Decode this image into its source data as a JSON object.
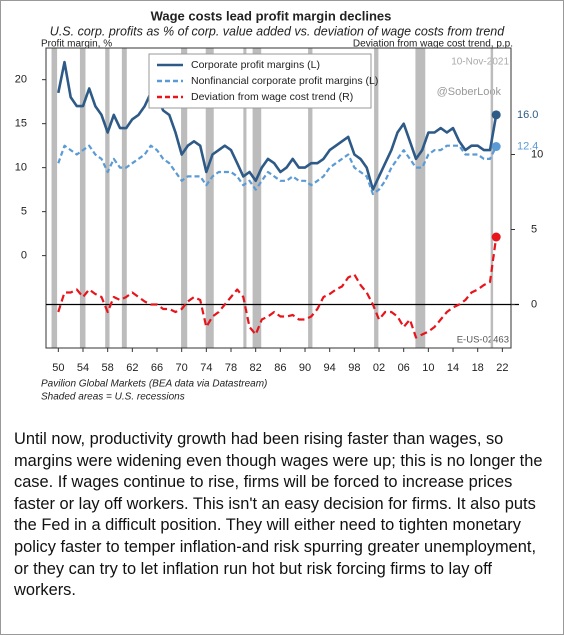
{
  "chart_data": {
    "type": "line",
    "title": "Wage costs lead profit margin declines",
    "subtitle": "U.S. corp. profits as % of corp. value added vs. deviation of wage costs from trend",
    "ylabel": "Profit margin, %",
    "y2label": "Deviation from wage cost trend, p.p.",
    "source": "Pavilion Global Markets (BEA data via Datastream)",
    "note": "Shaded areas = U.S. recessions",
    "code": "E-US-02463",
    "watermarks": [
      "10-Nov-2021",
      "@SoberLook"
    ],
    "x": [
      1950,
      1951,
      1952,
      1953,
      1954,
      1955,
      1956,
      1957,
      1958,
      1959,
      1960,
      1961,
      1962,
      1963,
      1964,
      1965,
      1966,
      1967,
      1968,
      1969,
      1970,
      1971,
      1972,
      1973,
      1974,
      1975,
      1976,
      1977,
      1978,
      1979,
      1980,
      1981,
      1982,
      1983,
      1984,
      1985,
      1986,
      1987,
      1988,
      1989,
      1990,
      1991,
      1992,
      1993,
      1994,
      1995,
      1996,
      1997,
      1998,
      1999,
      2000,
      2001,
      2002,
      2003,
      2004,
      2005,
      2006,
      2007,
      2008,
      2009,
      2010,
      2011,
      2012,
      2013,
      2014,
      2015,
      2016,
      2017,
      2018,
      2019,
      2020,
      2021
    ],
    "series": [
      {
        "name": "Corporate profit margins (L)",
        "color": "#2e5a87",
        "dash": false,
        "end_label": "16.0",
        "values": [
          18.5,
          22,
          18,
          17,
          17,
          19,
          17,
          16,
          14,
          16,
          14.5,
          14.5,
          15.5,
          16,
          17,
          18.5,
          18,
          16.5,
          16,
          14,
          11.5,
          12.5,
          13,
          12.5,
          9.5,
          11.5,
          12,
          12.5,
          12,
          10.5,
          9,
          9.5,
          8.5,
          10,
          11,
          10.5,
          9.5,
          10,
          11,
          10,
          10,
          10.5,
          10.5,
          11,
          12,
          12.5,
          13,
          13.5,
          11.5,
          11,
          10,
          7.5,
          9,
          10.5,
          12,
          14,
          15,
          13,
          11,
          12,
          14,
          14,
          14.5,
          14,
          14.5,
          13,
          12,
          12.5,
          12.5,
          12,
          12,
          16
        ]
      },
      {
        "name": "Nonfinancial corporate profit margins (L)",
        "color": "#5b9bd5",
        "dash": true,
        "end_label": "12.4",
        "values": [
          10.5,
          12.5,
          12,
          11.5,
          12,
          12.5,
          11.5,
          11,
          9.5,
          11,
          10,
          10,
          10.5,
          11,
          11.5,
          12.5,
          12,
          11,
          10.5,
          9.5,
          8.5,
          9,
          9,
          9,
          8,
          9,
          9.5,
          9.5,
          9.5,
          9,
          8,
          8.5,
          7.5,
          8.5,
          9.5,
          9,
          8.5,
          8.5,
          9,
          8.5,
          8.5,
          8,
          8.5,
          9,
          10,
          10.5,
          11,
          11.5,
          10,
          9.5,
          9,
          7,
          7.5,
          8.5,
          10,
          11,
          12,
          11,
          10,
          10,
          11.5,
          12,
          12,
          12.5,
          12.5,
          12.5,
          11.5,
          11.5,
          11.5,
          11,
          11,
          12.4
        ]
      },
      {
        "name": "Deviation from wage cost trend (R)",
        "color": "#e8141b",
        "dash": true,
        "axis": "y2",
        "values": [
          -0.5,
          0.8,
          0.8,
          1,
          0.5,
          1,
          0.7,
          0.5,
          -0.5,
          0.5,
          0.3,
          0.5,
          0.8,
          0.5,
          0.2,
          0,
          0,
          -0.3,
          -0.3,
          -0.5,
          -0.3,
          0.2,
          0.5,
          0.3,
          -1.5,
          -0.8,
          -0.5,
          0,
          0.5,
          1,
          0.5,
          -1.5,
          -2,
          -1,
          -0.8,
          -0.5,
          -0.8,
          -0.8,
          -0.7,
          -1,
          -1,
          -0.8,
          -0.3,
          0.5,
          0.7,
          1,
          1.2,
          1.8,
          2,
          1.3,
          0.8,
          0,
          -1,
          -0.5,
          -0.5,
          -0.8,
          -1.5,
          -1,
          -2.2,
          -2,
          -1.8,
          -1.5,
          -1,
          -0.5,
          -0.2,
          0,
          0.3,
          0.8,
          1,
          1.3,
          1.5,
          4.5
        ]
      }
    ],
    "recessions": [
      [
        1948.9,
        1949.8
      ],
      [
        1953.5,
        1954.4
      ],
      [
        1957.6,
        1958.3
      ],
      [
        1960.3,
        1961.1
      ],
      [
        1969.9,
        1970.9
      ],
      [
        1973.9,
        1975.2
      ],
      [
        1980.0,
        1980.5
      ],
      [
        1981.5,
        1982.9
      ],
      [
        1990.5,
        1991.2
      ],
      [
        2001.2,
        2001.9
      ],
      [
        2007.9,
        2009.5
      ],
      [
        2020.1,
        2020.5
      ]
    ],
    "xlim": [
      1948,
      2023.4
    ],
    "xticks": [
      {
        "value": 1950,
        "label": "50"
      },
      {
        "value": 1954,
        "label": "54"
      },
      {
        "value": 1958,
        "label": "58"
      },
      {
        "value": 1962,
        "label": "62"
      },
      {
        "value": 1966,
        "label": "66"
      },
      {
        "value": 1970,
        "label": "70"
      },
      {
        "value": 1974,
        "label": "74"
      },
      {
        "value": 1978,
        "label": "78"
      },
      {
        "value": 1982,
        "label": "82"
      },
      {
        "value": 1986,
        "label": "86"
      },
      {
        "value": 1990,
        "label": "90"
      },
      {
        "value": 1994,
        "label": "94"
      },
      {
        "value": 1998,
        "label": "98"
      },
      {
        "value": 2002,
        "label": "02"
      },
      {
        "value": 2006,
        "label": "06"
      },
      {
        "value": 2010,
        "label": "10"
      },
      {
        "value": 2014,
        "label": "14"
      },
      {
        "value": 2018,
        "label": "18"
      },
      {
        "value": 2022,
        "label": "22"
      }
    ],
    "ylim": [
      -10.5,
      23.6
    ],
    "yticks": [
      0,
      5,
      10,
      15,
      20
    ],
    "y2lim": [
      -2.9,
      17.1
    ],
    "y2ticks": [
      0,
      5,
      10
    ],
    "grid": false,
    "legend": "top-left"
  },
  "caption": "Until now, productivity growth had been rising faster than wages, so margins were widening even though wages were up; this is no longer the case. If wages continue to rise, firms will be forced to increase prices faster or lay off workers. This isn't an easy decision for firms. It also puts the Fed in a difficult position. They will either need to tighten monetary policy faster to temper inflation-and risk spurring greater unemployment, or they can try to let inflation run hot but risk forcing firms to lay off workers."
}
